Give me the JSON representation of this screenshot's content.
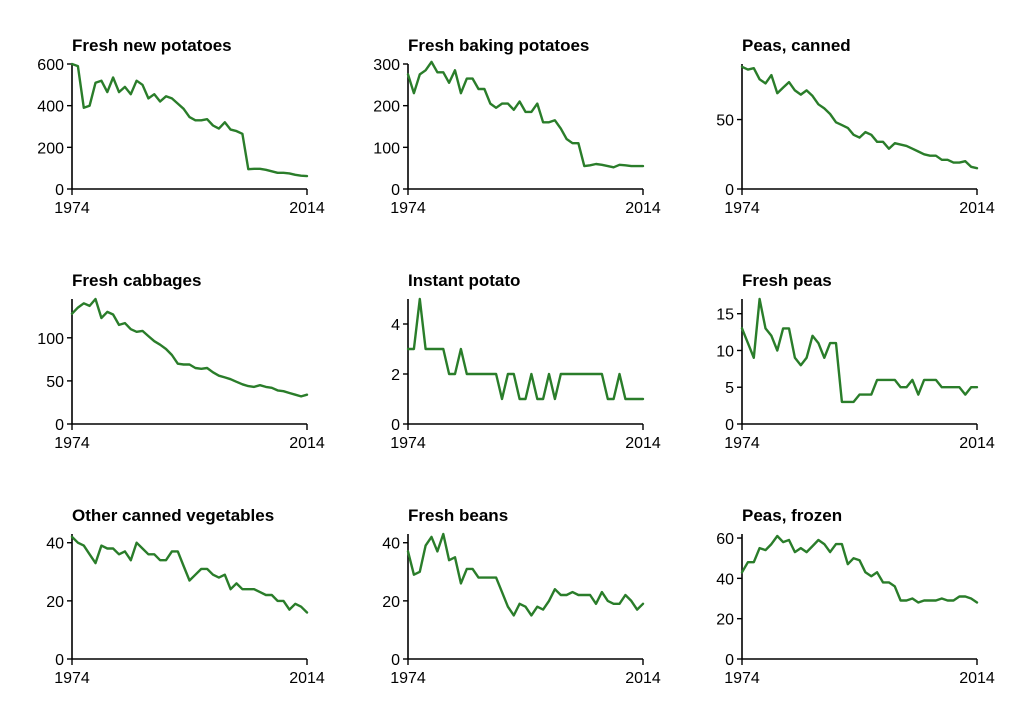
{
  "figure": {
    "line_color": "#2a7d2a",
    "axis_color": "#000000"
  },
  "chart_data": [
    {
      "type": "line",
      "title": "Fresh new potatoes",
      "x_start": 1974,
      "x_end": 2014,
      "xticks": [
        1974,
        2014
      ],
      "ylim": [
        0,
        600
      ],
      "yticks": [
        0,
        200,
        400,
        600
      ],
      "values": [
        600,
        590,
        390,
        400,
        510,
        520,
        465,
        535,
        465,
        490,
        455,
        520,
        500,
        435,
        455,
        420,
        445,
        435,
        410,
        385,
        345,
        330,
        330,
        335,
        305,
        290,
        320,
        285,
        278,
        265,
        95,
        97,
        97,
        92,
        85,
        78,
        78,
        75,
        68,
        64,
        62
      ]
    },
    {
      "type": "line",
      "title": "Fresh baking potatoes",
      "x_start": 1974,
      "x_end": 2014,
      "xticks": [
        1974,
        2014
      ],
      "ylim": [
        0,
        300
      ],
      "yticks": [
        0,
        100,
        200,
        300
      ],
      "values": [
        275,
        230,
        275,
        285,
        305,
        280,
        280,
        255,
        285,
        230,
        265,
        265,
        240,
        240,
        205,
        195,
        205,
        205,
        190,
        210,
        185,
        185,
        205,
        160,
        160,
        165,
        145,
        120,
        110,
        110,
        55,
        57,
        60,
        58,
        55,
        52,
        58,
        57,
        55,
        55,
        55
      ]
    },
    {
      "type": "line",
      "title": "Peas, canned",
      "x_start": 1974,
      "x_end": 2014,
      "xticks": [
        1974,
        2014
      ],
      "ylim": [
        0,
        90
      ],
      "yticks": [
        0,
        50
      ],
      "values": [
        88,
        86,
        87,
        79,
        76,
        82,
        69,
        73,
        77,
        71,
        68,
        71,
        67,
        61,
        58,
        54,
        48,
        46,
        44,
        39,
        37,
        41,
        39,
        34,
        34,
        29,
        33,
        32,
        31,
        29,
        27,
        25,
        24,
        24,
        21,
        21,
        19,
        19,
        20,
        16,
        15
      ]
    },
    {
      "type": "line",
      "title": "Fresh cabbages",
      "x_start": 1974,
      "x_end": 2014,
      "xticks": [
        1974,
        2014
      ],
      "ylim": [
        0,
        145
      ],
      "yticks": [
        0,
        50,
        100
      ],
      "values": [
        128,
        135,
        140,
        137,
        145,
        123,
        130,
        127,
        115,
        117,
        110,
        107,
        108,
        102,
        96,
        92,
        87,
        80,
        70,
        69,
        69,
        65,
        64,
        65,
        60,
        56,
        54,
        52,
        49,
        46,
        44,
        43,
        45,
        43,
        42,
        39,
        38,
        36,
        34,
        32,
        34
      ]
    },
    {
      "type": "line",
      "title": "Instant potato",
      "x_start": 1974,
      "x_end": 2014,
      "xticks": [
        1974,
        2014
      ],
      "ylim": [
        0,
        5
      ],
      "yticks": [
        0,
        2,
        4
      ],
      "values": [
        3,
        3,
        5,
        3,
        3,
        3,
        3,
        2,
        2,
        3,
        2,
        2,
        2,
        2,
        2,
        2,
        1,
        2,
        2,
        1,
        1,
        2,
        1,
        1,
        2,
        1,
        2,
        2,
        2,
        2,
        2,
        2,
        2,
        2,
        1,
        1,
        2,
        1,
        1,
        1,
        1
      ]
    },
    {
      "type": "line",
      "title": "Fresh peas",
      "x_start": 1974,
      "x_end": 2014,
      "xticks": [
        1974,
        2014
      ],
      "ylim": [
        0,
        17
      ],
      "yticks": [
        0,
        5,
        10,
        15
      ],
      "values": [
        13,
        11,
        9,
        17,
        13,
        12,
        10,
        13,
        13,
        9,
        8,
        9,
        12,
        11,
        9,
        11,
        11,
        3,
        3,
        3,
        4,
        4,
        4,
        6,
        6,
        6,
        6,
        5,
        5,
        6,
        4,
        6,
        6,
        6,
        5,
        5,
        5,
        5,
        4,
        5,
        5
      ]
    },
    {
      "type": "line",
      "title": "Other canned vegetables",
      "x_start": 1974,
      "x_end": 2014,
      "xticks": [
        1974,
        2014
      ],
      "ylim": [
        0,
        43
      ],
      "yticks": [
        0,
        20,
        40
      ],
      "values": [
        42,
        40,
        39,
        36,
        33,
        39,
        38,
        38,
        36,
        37,
        34,
        40,
        38,
        36,
        36,
        34,
        34,
        37,
        37,
        32,
        27,
        29,
        31,
        31,
        29,
        28,
        29,
        24,
        26,
        24,
        24,
        24,
        23,
        22,
        22,
        20,
        20,
        17,
        19,
        18,
        16
      ]
    },
    {
      "type": "line",
      "title": "Fresh beans",
      "x_start": 1974,
      "x_end": 2014,
      "xticks": [
        1974,
        2014
      ],
      "ylim": [
        0,
        43
      ],
      "yticks": [
        0,
        20,
        40
      ],
      "values": [
        37,
        29,
        30,
        39,
        42,
        37,
        43,
        34,
        35,
        26,
        31,
        31,
        28,
        28,
        28,
        28,
        23,
        18,
        15,
        19,
        18,
        15,
        18,
        17,
        20,
        24,
        22,
        22,
        23,
        22,
        22,
        22,
        19,
        23,
        20,
        19,
        19,
        22,
        20,
        17,
        19
      ]
    },
    {
      "type": "line",
      "title": "Peas, frozen",
      "x_start": 1974,
      "x_end": 2014,
      "xticks": [
        1974,
        2014
      ],
      "ylim": [
        0,
        62
      ],
      "yticks": [
        0,
        20,
        40,
        60
      ],
      "values": [
        43,
        48,
        48,
        55,
        54,
        57,
        61,
        58,
        59,
        53,
        55,
        53,
        56,
        59,
        57,
        53,
        57,
        57,
        47,
        50,
        49,
        43,
        41,
        43,
        38,
        38,
        36,
        29,
        29,
        30,
        28,
        29,
        29,
        29,
        30,
        29,
        29,
        31,
        31,
        30,
        28
      ]
    }
  ]
}
